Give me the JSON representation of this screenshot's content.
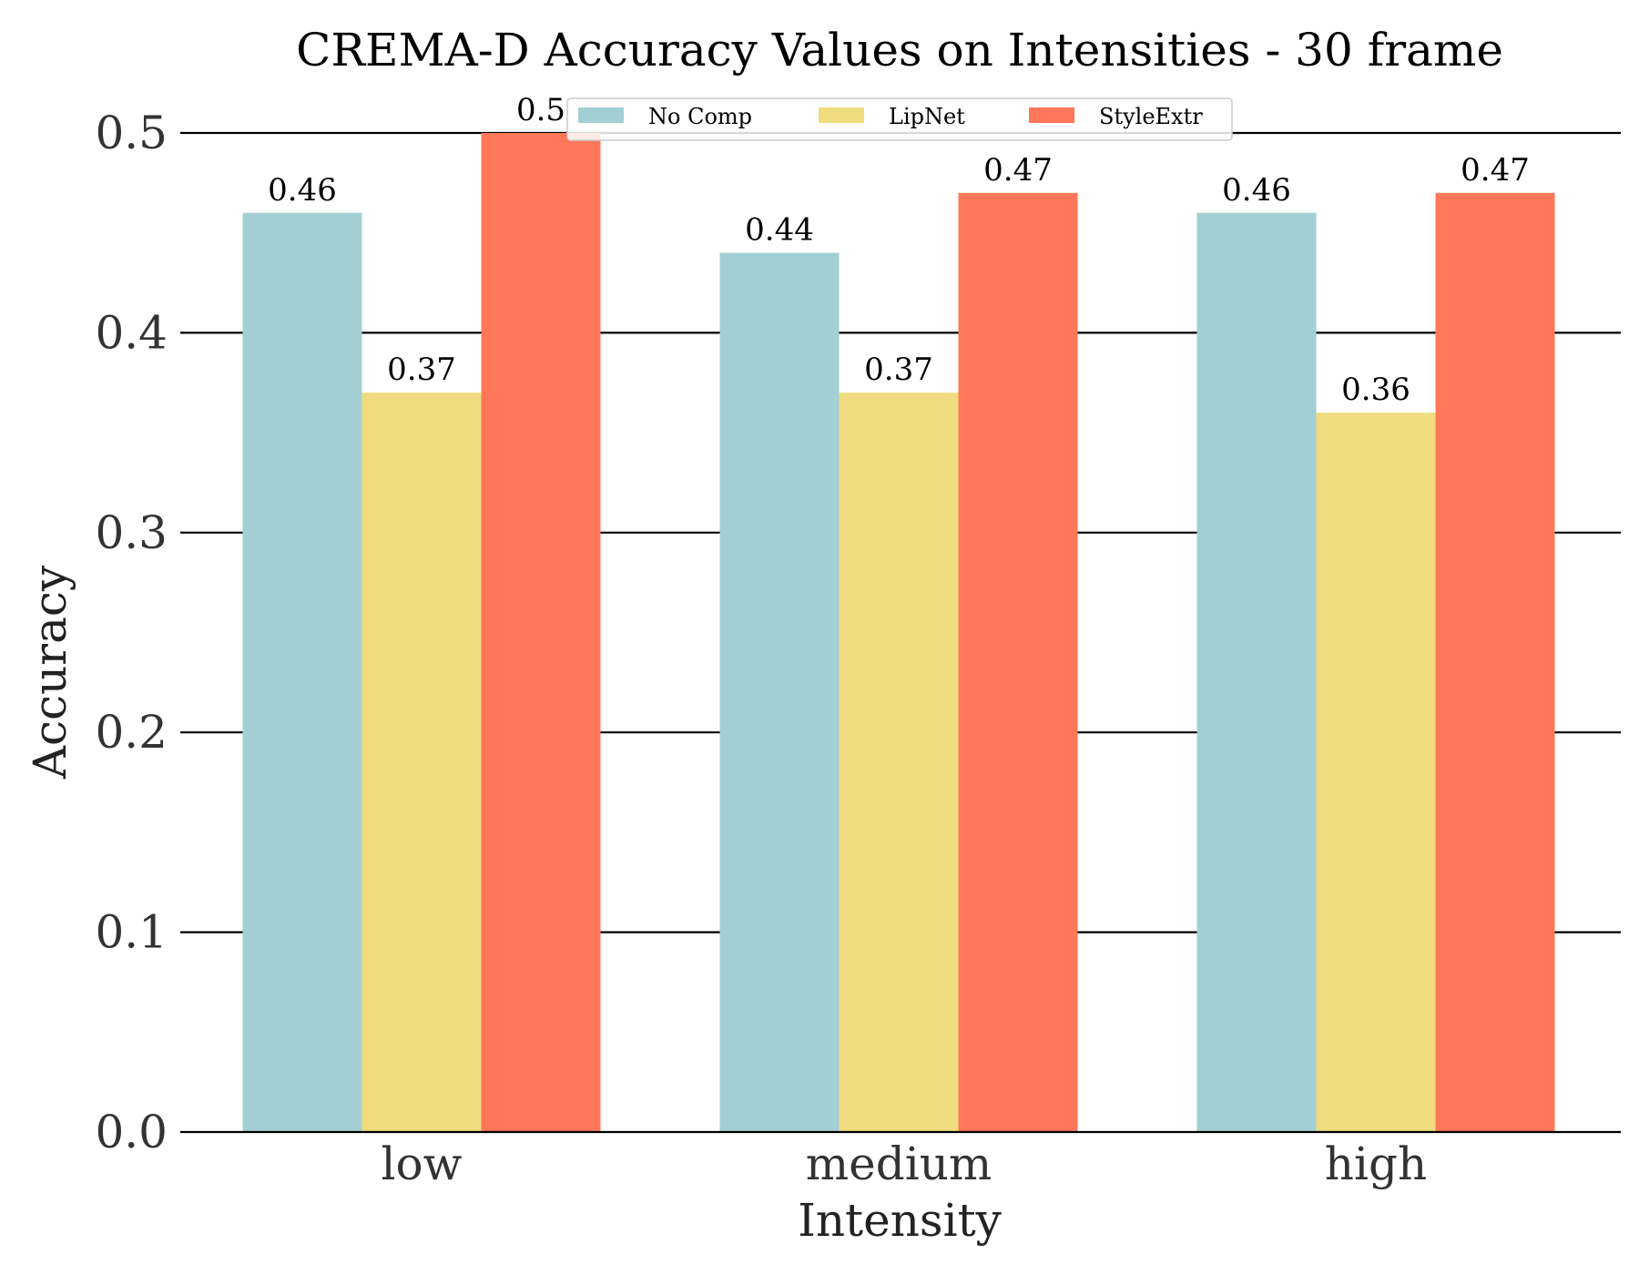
{
  "chart_data": {
    "type": "bar",
    "title": "CREMA-D Accuracy Values on Intensities - 30 frame",
    "xlabel": "Intensity",
    "ylabel": "Accuracy",
    "categories": [
      "low",
      "medium",
      "high"
    ],
    "series": [
      {
        "name": "No Comp",
        "color": "#a2cfd4",
        "values": [
          0.46,
          0.44,
          0.46
        ],
        "labels": [
          "0.46",
          "0.44",
          "0.46"
        ]
      },
      {
        "name": "LipNet",
        "color": "#f0dc7e",
        "values": [
          0.37,
          0.37,
          0.36
        ],
        "labels": [
          "0.37",
          "0.37",
          "0.36"
        ]
      },
      {
        "name": "StyleExtr",
        "color": "#ff7759",
        "values": [
          0.5,
          0.47,
          0.47
        ],
        "labels": [
          "0.5",
          "0.47",
          "0.47"
        ]
      }
    ],
    "ylim": [
      0,
      0.5
    ],
    "yticks": [
      0.0,
      0.1,
      0.2,
      0.3,
      0.4,
      0.5
    ],
    "ytick_labels": [
      "0.0",
      "0.1",
      "0.2",
      "0.3",
      "0.4",
      "0.5"
    ],
    "grid": "horizontal",
    "legend_position": "top-center"
  }
}
